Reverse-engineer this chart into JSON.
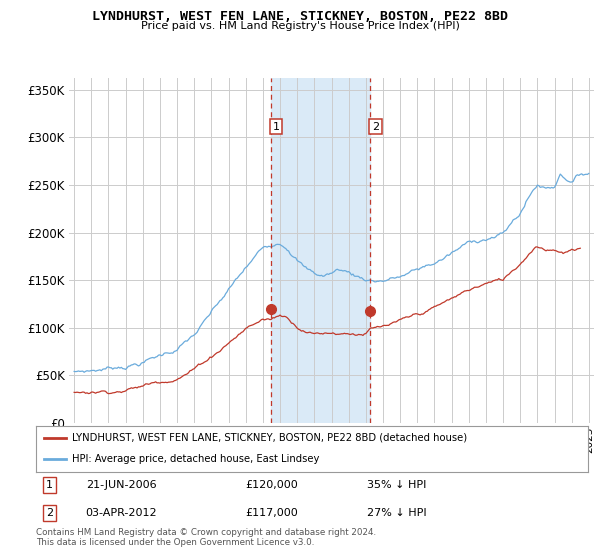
{
  "title": "LYNDHURST, WEST FEN LANE, STICKNEY, BOSTON, PE22 8BD",
  "subtitle": "Price paid vs. HM Land Registry's House Price Index (HPI)",
  "footer": "Contains HM Land Registry data © Crown copyright and database right 2024.\nThis data is licensed under the Open Government Licence v3.0.",
  "legend_line1": "LYNDHURST, WEST FEN LANE, STICKNEY, BOSTON, PE22 8BD (detached house)",
  "legend_line2": "HPI: Average price, detached house, East Lindsey",
  "sale1_date": "21-JUN-2006",
  "sale1_price": "£120,000",
  "sale1_hpi": "35% ↓ HPI",
  "sale2_date": "03-APR-2012",
  "sale2_price": "£117,000",
  "sale2_hpi": "27% ↓ HPI",
  "highlight_x1": 2006.47,
  "highlight_x2": 2012.25,
  "marker1_x": 2006.47,
  "marker1_y": 120000,
  "marker2_x": 2012.25,
  "marker2_y": 117000,
  "hpi_color": "#6aabdc",
  "price_color": "#c0392b",
  "highlight_color": "#daeaf7",
  "background_color": "#ffffff",
  "grid_color": "#cccccc",
  "yticks": [
    0,
    50000,
    100000,
    150000,
    200000,
    250000,
    300000,
    350000
  ],
  "ytick_labels": [
    "£0",
    "£50K",
    "£100K",
    "£150K",
    "£200K",
    "£250K",
    "£300K",
    "£350K"
  ],
  "xlim_start": 1994.7,
  "xlim_end": 2025.3,
  "ylim_min": 0,
  "ylim_max": 362000
}
